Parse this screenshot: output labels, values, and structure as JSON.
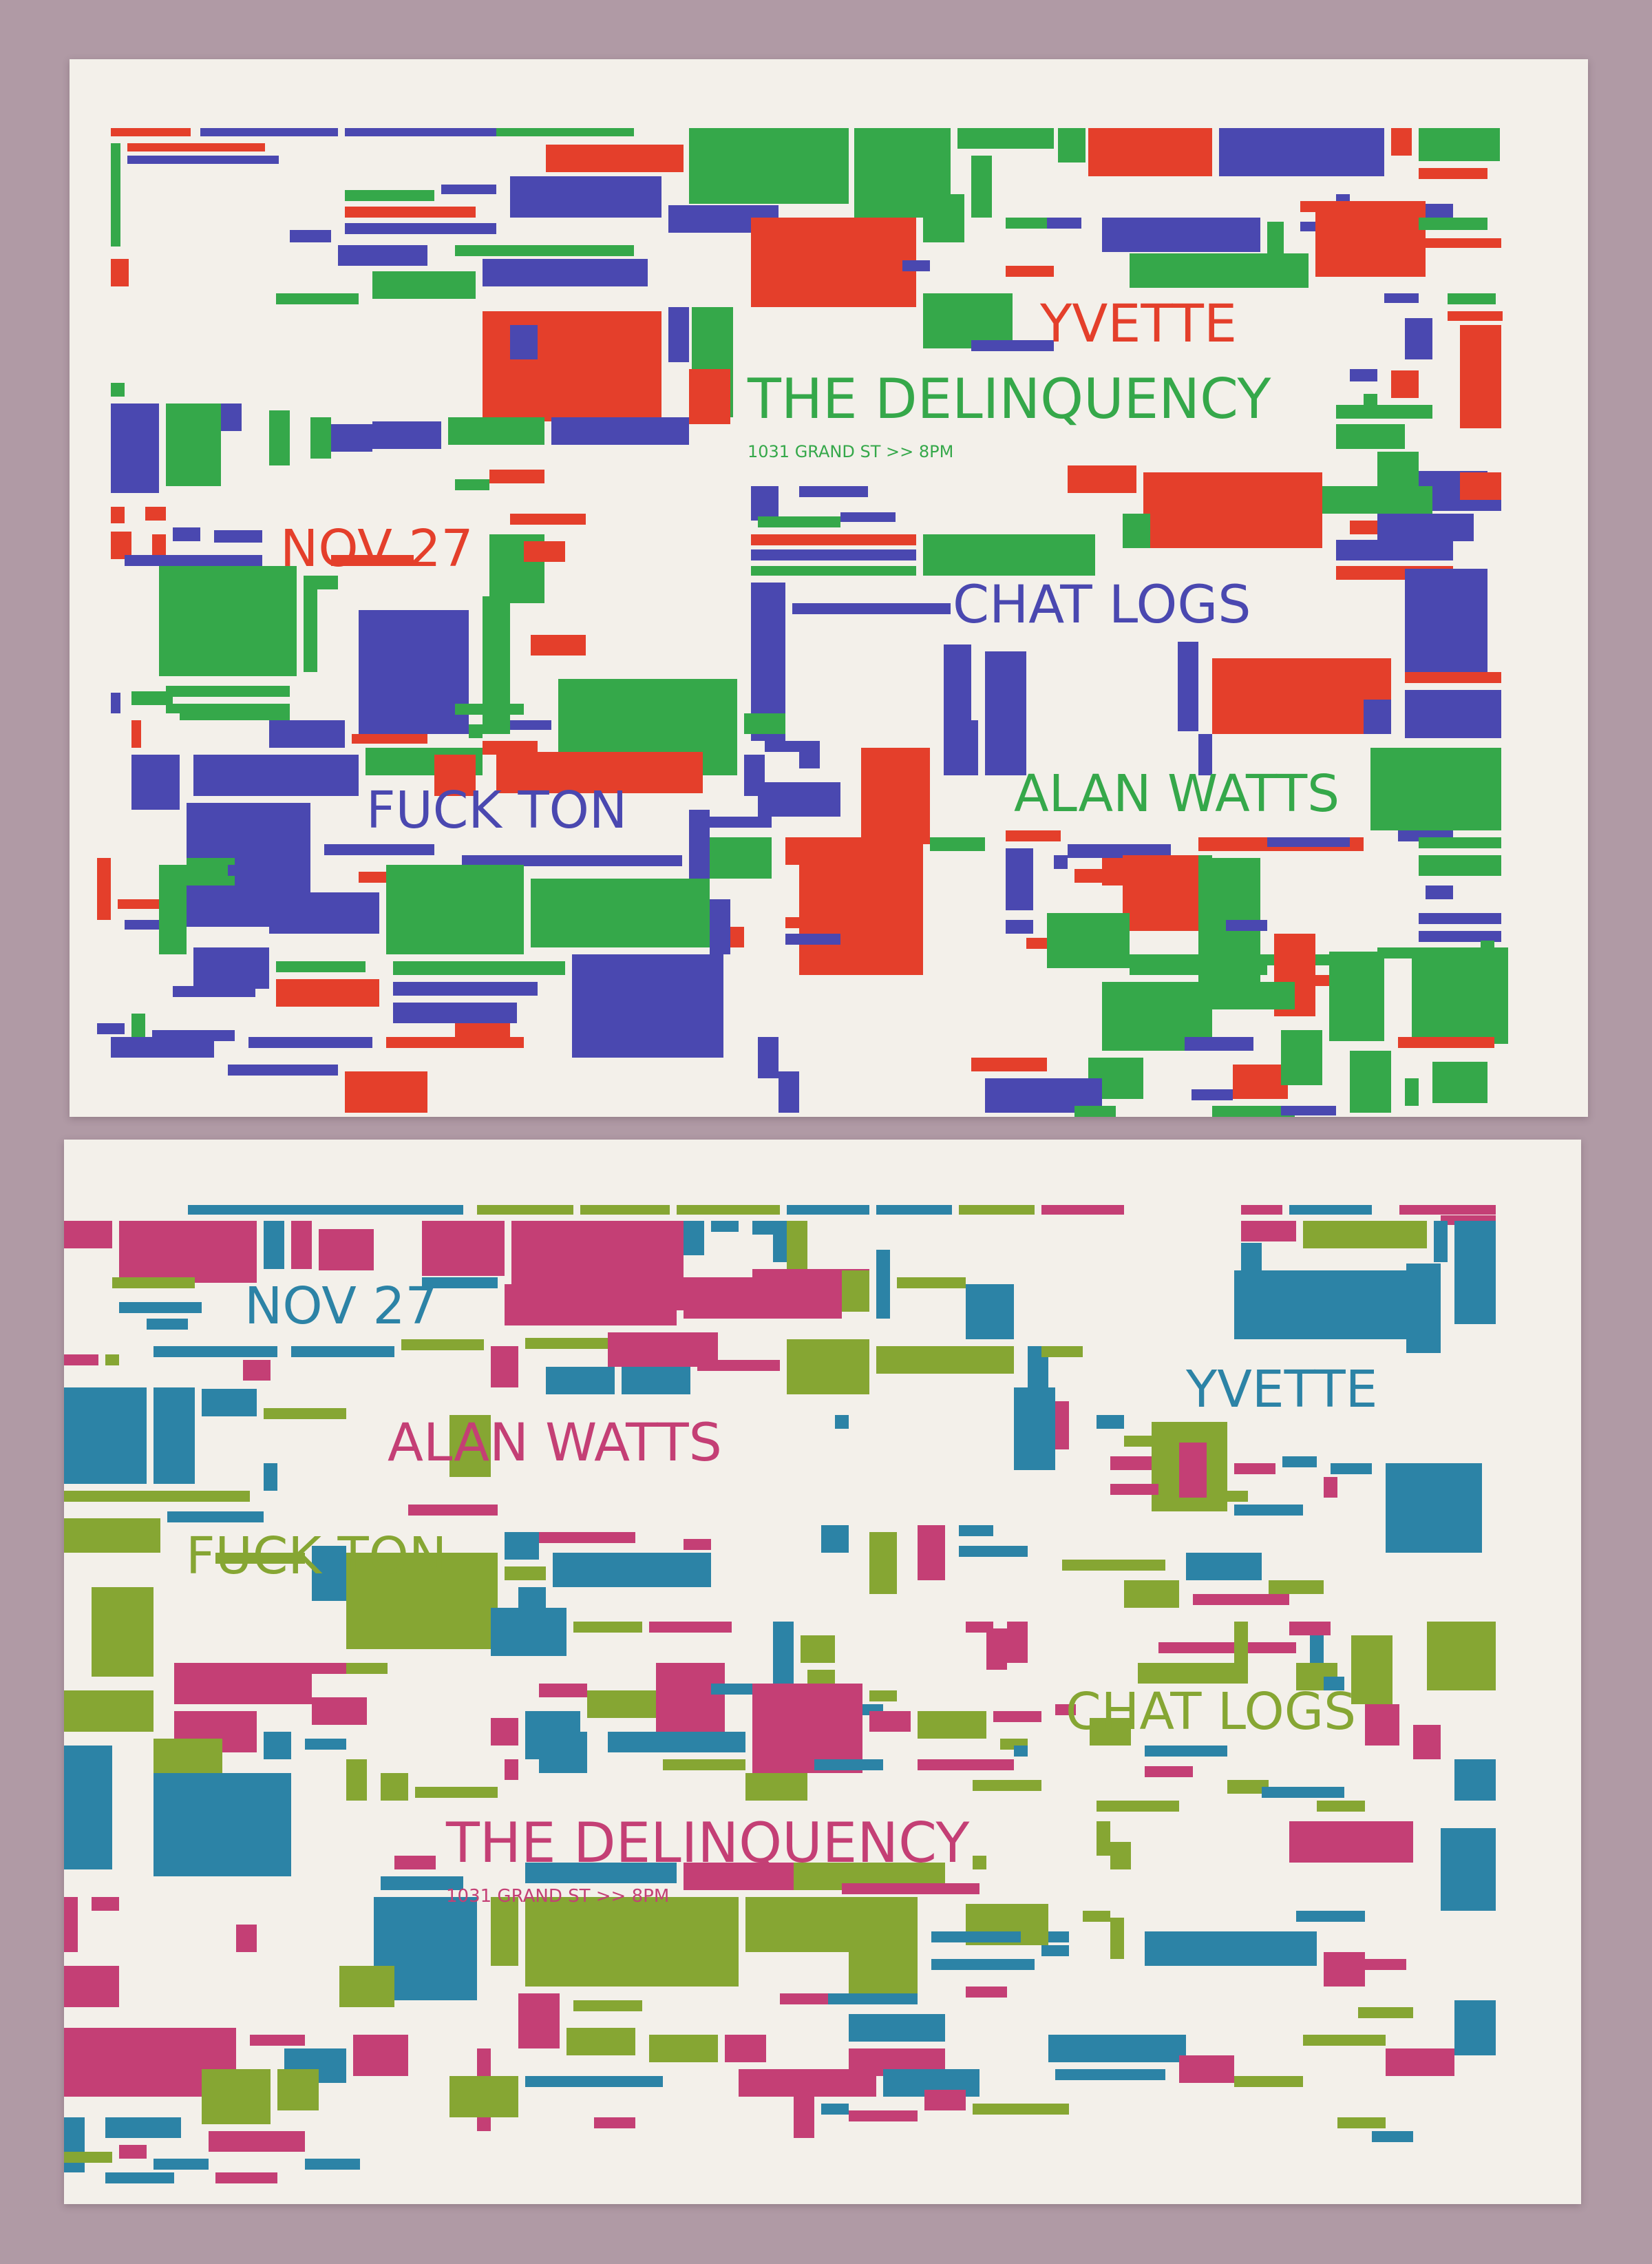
{
  "photo": {
    "background": "#b09aa5",
    "card": "#f3f0ea"
  },
  "cards": [
    {
      "id": "top",
      "palette": {
        "primary": "#e43f2b",
        "secondary": "#35a84a",
        "tertiary": "#4a48b0"
      },
      "labels": {
        "yvette": "YVETTE",
        "venue_act": "THE DELINQUENCY",
        "address": "1031 GRAND ST >> 8PM",
        "date": "NOV 27",
        "chat_logs": "CHAT LOGS",
        "fuck_ton": "FUCK TON",
        "alan_watts": "ALAN WATTS"
      }
    },
    {
      "id": "bottom",
      "palette": {
        "primary": "#c43f75",
        "secondary": "#86a633",
        "tertiary": "#2c83a6"
      },
      "labels": {
        "date": "NOV 27",
        "yvette": "YVETTE",
        "alan_watts": "ALAN WATTS",
        "fuck_ton": "FUCK TON",
        "chat_logs": "CHAT LOGS",
        "venue_act": "THE DELINQUENCY",
        "address": "1031 GRAND ST >> 8PM"
      }
    }
  ]
}
